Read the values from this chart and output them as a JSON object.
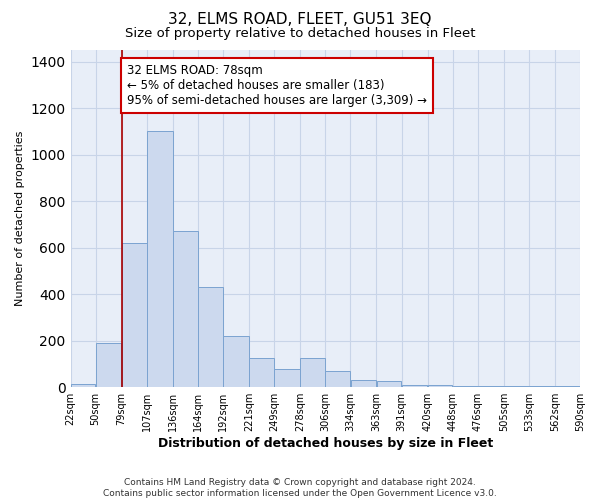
{
  "title": "32, ELMS ROAD, FLEET, GU51 3EQ",
  "subtitle": "Size of property relative to detached houses in Fleet",
  "xlabel": "Distribution of detached houses by size in Fleet",
  "ylabel": "Number of detached properties",
  "bin_edges": [
    22,
    50,
    79,
    107,
    136,
    164,
    192,
    221,
    249,
    278,
    306,
    334,
    363,
    391,
    420,
    448,
    476,
    505,
    533,
    562,
    590
  ],
  "bin_heights": [
    15,
    190,
    620,
    1100,
    670,
    430,
    220,
    125,
    80,
    125,
    70,
    30,
    27,
    10,
    10,
    5,
    4,
    4,
    4,
    4
  ],
  "bar_color": "#ccd9ee",
  "bar_edge_color": "#7ba3d0",
  "vline_x": 79,
  "vline_color": "#aa0000",
  "annotation_text": "32 ELMS ROAD: 78sqm\n← 5% of detached houses are smaller (183)\n95% of semi-detached houses are larger (3,309) →",
  "annotation_box_edge_color": "#cc0000",
  "annotation_box_face_color": "#ffffff",
  "ylim": [
    0,
    1450
  ],
  "xlim": [
    22,
    590
  ],
  "tick_labels": [
    "22sqm",
    "50sqm",
    "79sqm",
    "107sqm",
    "136sqm",
    "164sqm",
    "192sqm",
    "221sqm",
    "249sqm",
    "278sqm",
    "306sqm",
    "334sqm",
    "363sqm",
    "391sqm",
    "420sqm",
    "448sqm",
    "476sqm",
    "505sqm",
    "533sqm",
    "562sqm",
    "590sqm"
  ],
  "tick_positions": [
    22,
    50,
    79,
    107,
    136,
    164,
    192,
    221,
    249,
    278,
    306,
    334,
    363,
    391,
    420,
    448,
    476,
    505,
    533,
    562,
    590
  ],
  "footer_text": "Contains HM Land Registry data © Crown copyright and database right 2024.\nContains public sector information licensed under the Open Government Licence v3.0.",
  "bg_color": "#ffffff",
  "plot_bg_color": "#e8eef8",
  "grid_color": "#c8d4e8",
  "title_fontsize": 11,
  "subtitle_fontsize": 9.5,
  "annotation_fontsize": 8.5,
  "ylabel_fontsize": 8,
  "xlabel_fontsize": 9,
  "tick_fontsize": 7,
  "footer_fontsize": 6.5
}
